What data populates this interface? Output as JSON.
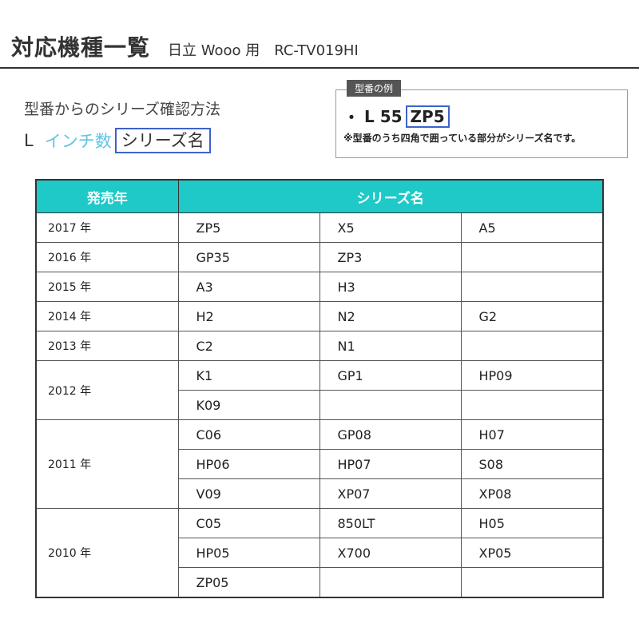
{
  "header": {
    "title": "対応機種一覧",
    "subtitle": "日立 Wooo 用　RC-TV019HI"
  },
  "how_to": {
    "heading": "型番からのシリーズ確認方法",
    "format_l": "L",
    "format_inch": "インチ数",
    "format_series": "シリーズ名"
  },
  "example": {
    "tag": "型番の例",
    "bullet": "・",
    "prefix": "L 55",
    "series": "ZP5",
    "note": "※型番のうち四角で囲っている部分がシリーズ名です。"
  },
  "colors": {
    "header_bg": "#1ec9c8",
    "inch_text": "#5fc4e6",
    "series_box": "#3d63c9"
  },
  "table": {
    "col_year": "発売年",
    "col_series": "シリーズ名",
    "groups": [
      {
        "year": "2017 年",
        "rows": [
          [
            "ZP5",
            "X5",
            "A5"
          ]
        ]
      },
      {
        "year": "2016 年",
        "rows": [
          [
            "GP35",
            "ZP3",
            ""
          ]
        ]
      },
      {
        "year": "2015 年",
        "rows": [
          [
            "A3",
            "H3",
            ""
          ]
        ]
      },
      {
        "year": "2014 年",
        "rows": [
          [
            "H2",
            "N2",
            "G2"
          ]
        ]
      },
      {
        "year": "2013 年",
        "rows": [
          [
            "C2",
            "N1",
            ""
          ]
        ]
      },
      {
        "year": "2012 年",
        "rows": [
          [
            "K1",
            "GP1",
            "HP09"
          ],
          [
            "K09",
            "",
            ""
          ]
        ]
      },
      {
        "year": "2011 年",
        "rows": [
          [
            "C06",
            "GP08",
            "H07"
          ],
          [
            "HP06",
            "HP07",
            "S08"
          ],
          [
            "V09",
            "XP07",
            "XP08"
          ]
        ]
      },
      {
        "year": "2010 年",
        "rows": [
          [
            "C05",
            "850LT",
            "H05"
          ],
          [
            "HP05",
            "X700",
            "XP05"
          ],
          [
            "ZP05",
            "",
            ""
          ]
        ]
      }
    ]
  }
}
